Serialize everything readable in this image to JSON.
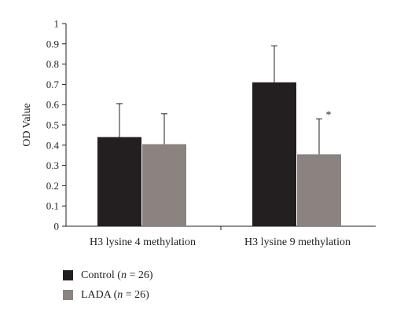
{
  "chart_data": {
    "type": "bar",
    "ylabel": "OD Value",
    "ylim": [
      0,
      1
    ],
    "yticks": [
      "0",
      "0.1",
      "0.2",
      "0.3",
      "0.4",
      "0.5",
      "0.6",
      "0.7",
      "0.8",
      "0.9",
      "1"
    ],
    "categories": [
      "H3 lysine 4 methylation",
      "H3 lysine 9 methylation"
    ],
    "series": [
      {
        "name": "Control (n = 26)",
        "name_prefix": "Control (",
        "name_var": "n",
        "name_suffix": " = 26)",
        "color": "#231f20",
        "values": [
          0.44,
          0.71
        ],
        "error": [
          0.165,
          0.18
        ]
      },
      {
        "name": "LADA (n = 26)",
        "name_prefix": "LADA (",
        "name_var": "n",
        "name_suffix": " = 26)",
        "color": "#8a8380",
        "values": [
          0.405,
          0.355
        ],
        "error": [
          0.15,
          0.175
        ]
      }
    ],
    "annotations": [
      {
        "category": 1,
        "series": 1,
        "text": "*"
      }
    ],
    "legend_position": "bottom-left",
    "grid": false
  }
}
